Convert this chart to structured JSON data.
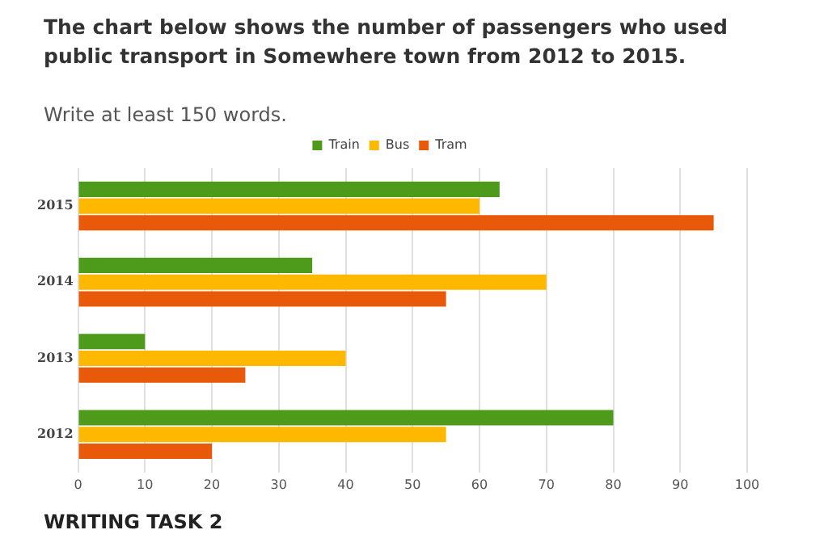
{
  "chart_data": {
    "type": "bar",
    "orientation": "horizontal",
    "title": "The chart below shows the number of passengers who used public transport in Somewhere town from 2012 to 2015.",
    "subtitle": "Write at least 150 words.",
    "annotations": [
      "WRITING TASK 2"
    ],
    "categories": [
      "2015",
      "2014",
      "2013",
      "2012"
    ],
    "series": [
      {
        "name": "Train",
        "color": "#4e9a1a",
        "values": [
          63,
          35,
          10,
          80
        ]
      },
      {
        "name": "Bus",
        "color": "#ffb800",
        "values": [
          60,
          70,
          40,
          55
        ]
      },
      {
        "name": "Tram",
        "color": "#e85a0a",
        "values": [
          95,
          55,
          25,
          20
        ]
      }
    ],
    "xlim": [
      0,
      100
    ],
    "xticks": [
      0,
      10,
      20,
      30,
      40,
      50,
      60,
      70,
      80,
      90,
      100
    ],
    "grid": "x",
    "legend": "top"
  }
}
